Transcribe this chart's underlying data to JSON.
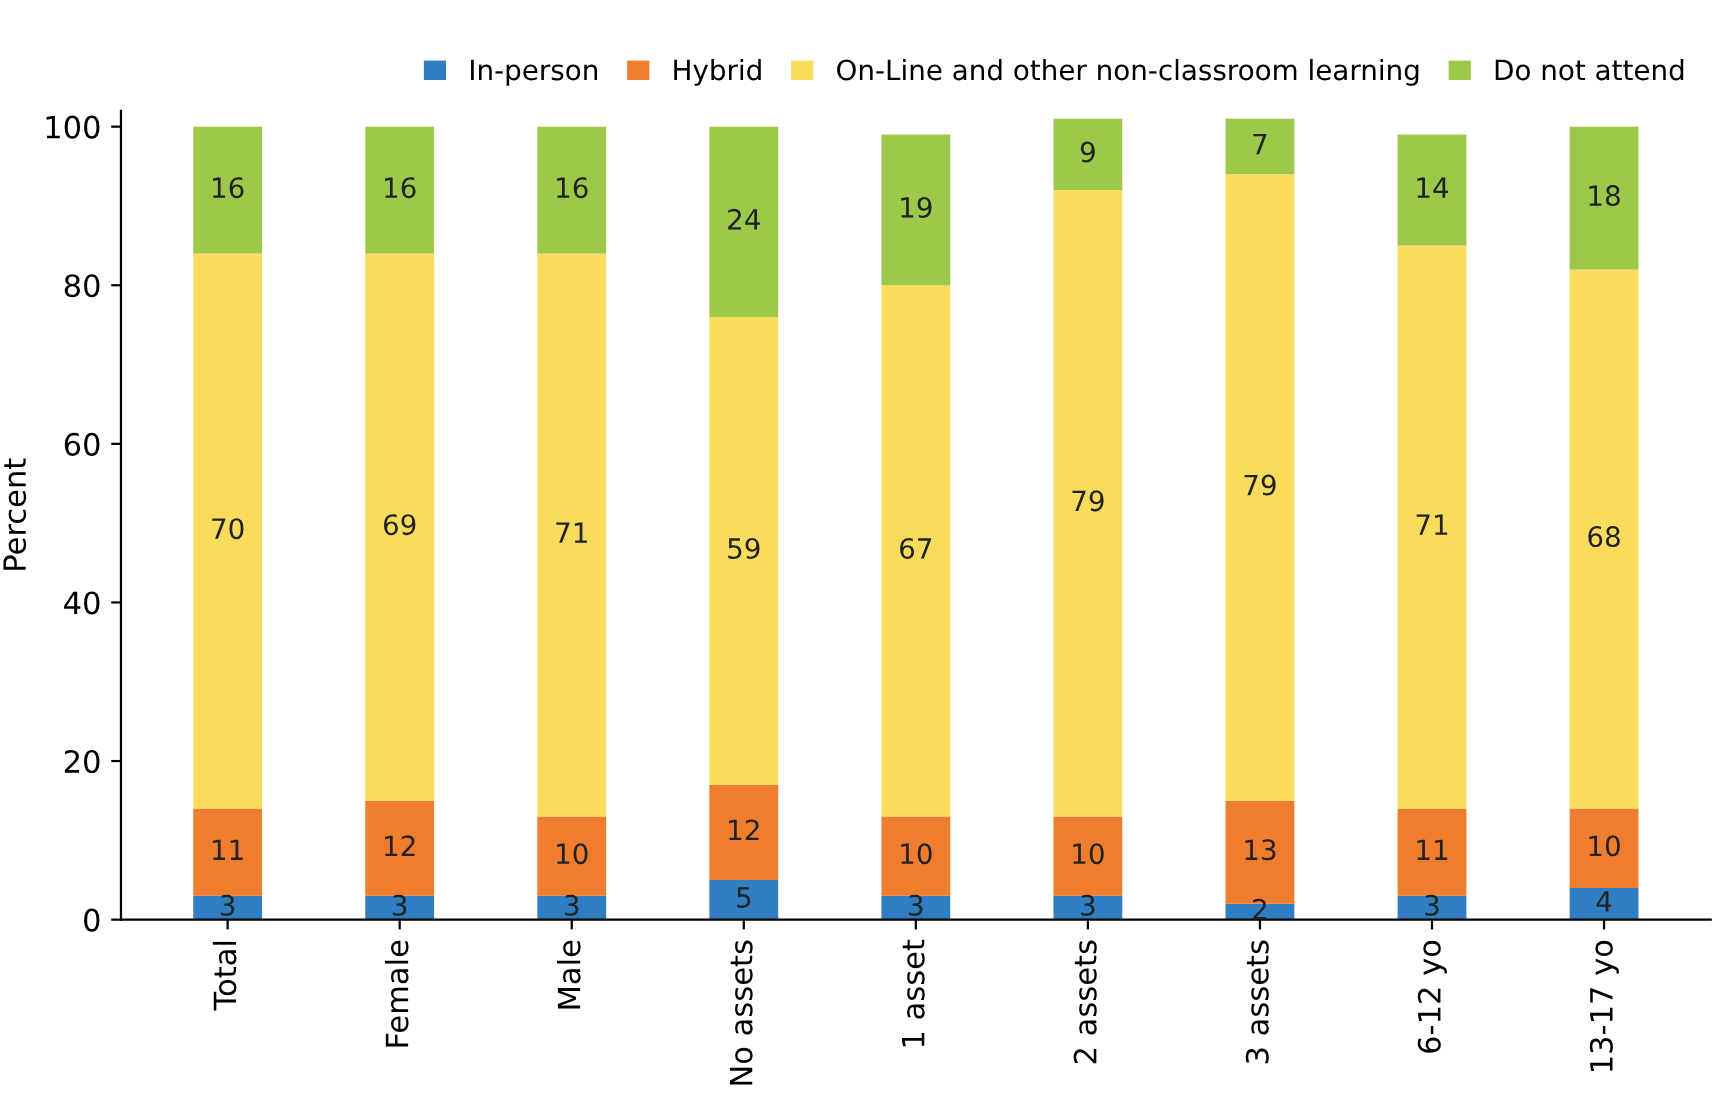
{
  "chart_data": {
    "type": "bar",
    "stacked": true,
    "ylabel": "Percent",
    "categories": [
      "Total",
      "Female",
      "Male",
      "No assets",
      "1 asset",
      "2 assets",
      "3 assets",
      "6-12 yo",
      "13-17 yo"
    ],
    "series": [
      {
        "name": "In-person",
        "color": "#2e7ec1",
        "values": [
          3,
          3,
          3,
          5,
          3,
          3,
          2,
          3,
          4
        ]
      },
      {
        "name": "Hybrid",
        "color": "#f07d2e",
        "values": [
          11,
          12,
          10,
          12,
          10,
          10,
          13,
          11,
          10
        ]
      },
      {
        "name": "On-Line and other non-classroom learning",
        "color": "#f9dc5c",
        "values": [
          70,
          69,
          71,
          59,
          67,
          79,
          79,
          71,
          68
        ]
      },
      {
        "name": "Do not attend",
        "color": "#9dc94a",
        "values": [
          16,
          16,
          16,
          24,
          19,
          9,
          7,
          14,
          18
        ]
      }
    ],
    "ylim": [
      0,
      102
    ],
    "yticks": [
      0,
      20,
      40,
      60,
      80,
      100
    ],
    "grid": false,
    "legend": "top right",
    "data_labels": true
  }
}
